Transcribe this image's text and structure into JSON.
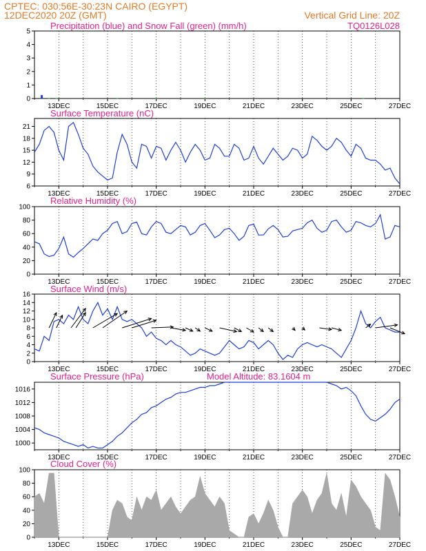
{
  "header": {
    "line1_left": "CPTEC:   030:56E-30:23N  CAIRO (EGYPT)",
    "line2_left": "12DEC2020 20Z (GMT)",
    "line2_right": "Vertical Grid Line: 20Z",
    "code": "TQ0126L028"
  },
  "colors": {
    "header": "#e07b28",
    "title": "#e0218a",
    "line": "#1f3fd6",
    "wind_arrow": "#000000",
    "cloud_fill": "#a9a9a9",
    "snow": "#2db34a"
  },
  "x_tick_labels": [
    "13DEC",
    "15DEC",
    "17DEC",
    "19DEC",
    "21DEC",
    "23DEC",
    "25DEC",
    "27DEC"
  ],
  "chart_data": [
    {
      "id": "precip",
      "type": "bar",
      "title": "Precipitation (blue) and Snow Fall (green) (mm/h)",
      "ylim": [
        0,
        5
      ],
      "yticks": [
        0,
        1,
        2,
        3,
        4,
        5
      ],
      "series": [
        {
          "name": "Precipitation",
          "color": "#1f3fd6",
          "x": [
            12.3
          ],
          "values": [
            0.25
          ]
        },
        {
          "name": "Snow Fall",
          "color": "#2db34a",
          "x": [
            12.6,
            12.9,
            15.4,
            17.0,
            19.0,
            25.5
          ],
          "values": [
            0.04,
            0.04,
            0.04,
            0.04,
            0.04,
            0.04
          ]
        }
      ]
    },
    {
      "id": "temp",
      "type": "line",
      "title": "Surface Temperature (nC)",
      "ylim": [
        6,
        23
      ],
      "yticks": [
        6,
        9,
        12,
        15,
        18,
        21
      ],
      "x": [
        12.0,
        12.2,
        12.4,
        12.6,
        12.8,
        13.0,
        13.2,
        13.4,
        13.6,
        13.8,
        14.0,
        14.2,
        14.4,
        14.6,
        14.8,
        15.0,
        15.2,
        15.4,
        15.6,
        15.8,
        16.0,
        16.2,
        16.4,
        16.6,
        16.8,
        17.0,
        17.2,
        17.4,
        17.6,
        17.8,
        18.0,
        18.2,
        18.4,
        18.6,
        18.8,
        19.0,
        19.2,
        19.4,
        19.6,
        19.8,
        20.0,
        20.2,
        20.4,
        20.6,
        20.8,
        21.0,
        21.2,
        21.4,
        21.6,
        21.8,
        22.0,
        22.2,
        22.4,
        22.6,
        22.8,
        23.0,
        23.2,
        23.4,
        23.6,
        23.8,
        24.0,
        24.2,
        24.4,
        24.6,
        24.8,
        25.0,
        25.2,
        25.4,
        25.6,
        25.8,
        26.0,
        26.2,
        26.4,
        26.6,
        26.8,
        27.0
      ],
      "values": [
        14.5,
        16.5,
        20.0,
        21.0,
        19.5,
        15.0,
        12.5,
        21.0,
        22.0,
        19.0,
        15.5,
        14.0,
        11.0,
        9.5,
        8.5,
        7.5,
        8.0,
        14.5,
        19.0,
        16.5,
        12.0,
        10.5,
        16.5,
        16.0,
        13.0,
        16.0,
        15.5,
        12.5,
        15.0,
        17.0,
        15.0,
        12.0,
        14.5,
        16.5,
        15.0,
        12.5,
        13.0,
        16.5,
        15.5,
        13.5,
        13.5,
        16.5,
        15.5,
        12.5,
        13.0,
        16.0,
        13.0,
        11.5,
        13.5,
        15.5,
        14.0,
        12.5,
        13.5,
        15.5,
        15.0,
        13.0,
        14.0,
        18.5,
        17.5,
        16.0,
        15.0,
        16.0,
        18.0,
        17.0,
        15.0,
        13.5,
        16.5,
        15.5,
        13.0,
        12.5,
        12.5,
        11.5,
        10.0,
        10.5,
        8.0,
        6.5
      ]
    },
    {
      "id": "humidity",
      "type": "line",
      "title": "Relative Humidity (%)",
      "ylim": [
        0,
        100
      ],
      "yticks": [
        0,
        20,
        40,
        60,
        80,
        100
      ],
      "x": [
        12.0,
        12.2,
        12.4,
        12.6,
        12.8,
        13.0,
        13.2,
        13.4,
        13.6,
        13.8,
        14.0,
        14.2,
        14.4,
        14.6,
        14.8,
        15.0,
        15.2,
        15.4,
        15.6,
        15.8,
        16.0,
        16.2,
        16.4,
        16.6,
        16.8,
        17.0,
        17.2,
        17.4,
        17.6,
        17.8,
        18.0,
        18.2,
        18.4,
        18.6,
        18.8,
        19.0,
        19.2,
        19.4,
        19.6,
        19.8,
        20.0,
        20.2,
        20.4,
        20.6,
        20.8,
        21.0,
        21.2,
        21.4,
        21.6,
        21.8,
        22.0,
        22.2,
        22.4,
        22.6,
        22.8,
        23.0,
        23.2,
        23.4,
        23.6,
        23.8,
        24.0,
        24.2,
        24.4,
        24.6,
        24.8,
        25.0,
        25.2,
        25.4,
        25.6,
        25.8,
        26.0,
        26.2,
        26.4,
        26.6,
        26.8,
        27.0
      ],
      "values": [
        48.0,
        45.0,
        30.0,
        26.0,
        28.0,
        38.0,
        55.0,
        30.0,
        25.0,
        32.0,
        38.0,
        45.0,
        52.0,
        50.0,
        60.0,
        65.0,
        75.0,
        78.0,
        60.0,
        63.0,
        75.0,
        77.0,
        60.0,
        58.0,
        70.0,
        78.0,
        75.0,
        62.0,
        60.0,
        66.0,
        72.0,
        70.0,
        58.0,
        62.0,
        72.0,
        75.0,
        65.0,
        54.0,
        58.0,
        66.0,
        68.0,
        60.0,
        50.0,
        56.0,
        72.0,
        74.0,
        58.0,
        58.0,
        67.0,
        72.0,
        66.0,
        55.0,
        56.0,
        64.0,
        66.0,
        68.0,
        76.0,
        80.0,
        68.0,
        62.0,
        65.0,
        78.0,
        80.0,
        70.0,
        62.0,
        65.0,
        78.0,
        76.0,
        72.0,
        70.0,
        75.0,
        88.0,
        52.0,
        55.0,
        72.0,
        70.0
      ]
    },
    {
      "id": "wind",
      "type": "line",
      "title": "Surface Wind (m/s)",
      "ylim": [
        0,
        16
      ],
      "yticks": [
        0,
        2,
        4,
        6,
        8,
        10,
        12,
        14,
        16
      ],
      "x": [
        12.0,
        12.2,
        12.4,
        12.6,
        12.8,
        13.0,
        13.2,
        13.4,
        13.6,
        13.8,
        14.0,
        14.2,
        14.4,
        14.6,
        14.8,
        15.0,
        15.2,
        15.4,
        15.6,
        15.8,
        16.0,
        16.2,
        16.4,
        16.6,
        16.8,
        17.0,
        17.2,
        17.4,
        17.6,
        17.8,
        18.0,
        18.2,
        18.4,
        18.6,
        18.8,
        19.0,
        19.2,
        19.4,
        19.6,
        19.8,
        20.0,
        20.2,
        20.4,
        20.6,
        20.8,
        21.0,
        21.2,
        21.4,
        21.6,
        21.8,
        22.0,
        22.2,
        22.4,
        22.6,
        22.8,
        23.0,
        23.2,
        23.4,
        23.6,
        23.8,
        24.0,
        24.2,
        24.4,
        24.6,
        24.8,
        25.0,
        25.2,
        25.4,
        25.6,
        25.8,
        26.0,
        26.2,
        26.4,
        26.6,
        26.8,
        27.0
      ],
      "values": [
        3.0,
        2.5,
        6.0,
        5.0,
        9.5,
        10.0,
        9.0,
        11.0,
        10.0,
        13.0,
        10.0,
        9.0,
        12.0,
        14.0,
        11.0,
        12.5,
        10.0,
        13.0,
        10.0,
        9.5,
        10.0,
        9.0,
        8.0,
        6.0,
        7.0,
        5.5,
        5.0,
        4.0,
        5.0,
        4.0,
        3.5,
        2.5,
        1.5,
        2.0,
        3.0,
        2.5,
        2.0,
        1.5,
        2.0,
        3.5,
        5.0,
        4.0,
        3.0,
        3.5,
        5.0,
        4.5,
        3.0,
        4.0,
        5.0,
        4.0,
        2.0,
        0.5,
        1.5,
        1.0,
        3.0,
        4.0,
        4.5,
        4.0,
        3.5,
        4.0,
        3.5,
        3.0,
        2.0,
        1.0,
        3.0,
        5.0,
        8.0,
        12.0,
        9.0,
        8.0,
        9.5,
        10.5,
        8.0,
        7.5,
        7.0,
        7.0
      ],
      "arrows": [
        {
          "x": 12.6,
          "dx": 0.3,
          "dy": 3.6
        },
        {
          "x": 12.9,
          "dx": 0.25,
          "dy": 3.0
        },
        {
          "x": 13.5,
          "dx": 0.6,
          "dy": 4.6
        },
        {
          "x": 13.7,
          "dx": 0.4,
          "dy": 3.6
        },
        {
          "x": 14.4,
          "dx": 1.0,
          "dy": 3.4
        },
        {
          "x": 14.8,
          "dx": 1.0,
          "dy": 4.0
        },
        {
          "x": 15.6,
          "dx": 1.2,
          "dy": 2.2
        },
        {
          "x": 16.0,
          "dx": 1.0,
          "dy": 1.8
        },
        {
          "x": 16.8,
          "dx": 0.9,
          "dy": 0.2
        },
        {
          "x": 17.6,
          "dx": 0.6,
          "dy": -0.6
        },
        {
          "x": 18.2,
          "dx": 0.3,
          "dy": -0.8
        },
        {
          "x": 18.6,
          "dx": 0.2,
          "dy": -0.8
        },
        {
          "x": 19.0,
          "dx": 0.3,
          "dy": -0.8
        },
        {
          "x": 19.6,
          "dx": 0.7,
          "dy": -0.9
        },
        {
          "x": 20.2,
          "dx": 0.3,
          "dy": -0.9
        },
        {
          "x": 20.7,
          "dx": 0.3,
          "dy": -1.0
        },
        {
          "x": 21.2,
          "dx": 0.2,
          "dy": -0.9
        },
        {
          "x": 21.6,
          "dx": 0.2,
          "dy": -0.9
        },
        {
          "x": 22.6,
          "dx": 0.1,
          "dy": -0.6
        },
        {
          "x": 23.0,
          "dx": 0.1,
          "dy": -0.5
        },
        {
          "x": 23.7,
          "dx": 0.5,
          "dy": -0.4
        },
        {
          "x": 24.2,
          "dx": 0.4,
          "dy": -0.6
        },
        {
          "x": 25.6,
          "dx": 0.2,
          "dy": 0.9
        },
        {
          "x": 26.0,
          "dx": 0.9,
          "dy": 0.7
        },
        {
          "x": 26.6,
          "dx": 0.6,
          "dy": -1.4
        }
      ]
    },
    {
      "id": "pressure",
      "type": "line",
      "title": "Surface Pressure (hPa)",
      "annotation": "Model Altitude: 83.1604 m",
      "ylim": [
        998,
        1018
      ],
      "yticks": [
        1000,
        1004,
        1008,
        1012,
        1016
      ],
      "x": [
        12.0,
        12.2,
        12.4,
        12.6,
        12.8,
        13.0,
        13.2,
        13.4,
        13.6,
        13.8,
        14.0,
        14.2,
        14.4,
        14.6,
        14.8,
        15.0,
        15.2,
        15.4,
        15.6,
        15.8,
        16.0,
        16.2,
        16.4,
        16.6,
        16.8,
        17.0,
        17.2,
        17.4,
        17.6,
        17.8,
        18.0,
        18.2,
        18.4,
        18.6,
        18.8,
        19.0,
        19.2,
        19.4,
        19.6,
        19.8,
        20.0,
        20.2,
        20.4,
        20.6,
        20.8,
        21.0,
        21.2,
        21.4,
        21.6,
        21.8,
        22.0,
        22.2,
        22.4,
        22.6,
        22.8,
        23.0,
        23.2,
        23.4,
        23.6,
        23.8,
        24.0,
        24.2,
        24.4,
        24.6,
        24.8,
        25.0,
        25.2,
        25.4,
        25.6,
        25.8,
        26.0,
        26.2,
        26.4,
        26.6,
        26.8,
        27.0
      ],
      "values": [
        1004.5,
        1004.0,
        1003.0,
        1002.5,
        1002.0,
        1001.5,
        1000.5,
        1000.0,
        999.5,
        999.0,
        999.5,
        998.5,
        999.0,
        998.5,
        998.5,
        999.5,
        1000.5,
        1002.0,
        1003.0,
        1004.5,
        1006.0,
        1007.0,
        1008.5,
        1009.0,
        1010.5,
        1011.0,
        1012.0,
        1013.0,
        1013.5,
        1014.5,
        1015.0,
        1015.0,
        1015.5,
        1016.0,
        1016.5,
        1016.5,
        1017.0,
        1017.0,
        1017.5,
        1018.0,
        1018.0,
        1018.0,
        1018.0,
        1018.0,
        1018.0,
        1018.0,
        1018.0,
        1018.0,
        1018.0,
        1018.0,
        1018.0,
        1018.0,
        1018.0,
        1018.0,
        1018.0,
        1018.0,
        1018.0,
        1018.0,
        1018.0,
        1018.0,
        1018.0,
        1017.5,
        1017.0,
        1016.0,
        1016.5,
        1015.5,
        1014.0,
        1011.0,
        1008.5,
        1007.0,
        1006.5,
        1007.5,
        1008.5,
        1010.0,
        1012.0,
        1013.0
      ]
    },
    {
      "id": "cloud",
      "type": "area",
      "title": "Cloud Cover (%)",
      "ylim": [
        0,
        100
      ],
      "yticks": [
        0,
        20,
        40,
        60,
        80,
        100
      ],
      "x": [
        12.0,
        12.2,
        12.4,
        12.6,
        12.8,
        13.0,
        13.2,
        13.4,
        13.6,
        13.8,
        14.0,
        14.2,
        14.4,
        14.6,
        14.8,
        15.0,
        15.2,
        15.4,
        15.6,
        15.8,
        16.0,
        16.2,
        16.4,
        16.6,
        16.8,
        17.0,
        17.2,
        17.4,
        17.6,
        17.8,
        18.0,
        18.2,
        18.4,
        18.6,
        18.8,
        19.0,
        19.2,
        19.4,
        19.6,
        19.8,
        20.0,
        20.2,
        20.4,
        20.6,
        20.8,
        21.0,
        21.2,
        21.4,
        21.6,
        21.8,
        22.0,
        22.2,
        22.4,
        22.6,
        22.8,
        23.0,
        23.2,
        23.4,
        23.6,
        23.8,
        24.0,
        24.2,
        24.4,
        24.6,
        24.8,
        25.0,
        25.2,
        25.4,
        25.6,
        25.8,
        26.0,
        26.2,
        26.4,
        26.6,
        26.8,
        27.0
      ],
      "values": [
        60,
        65,
        50,
        95,
        95,
        0,
        0,
        0,
        0,
        0,
        0,
        0,
        0,
        0,
        0,
        0,
        40,
        55,
        50,
        30,
        25,
        60,
        40,
        60,
        55,
        70,
        40,
        50,
        60,
        45,
        35,
        45,
        55,
        60,
        90,
        65,
        55,
        45,
        60,
        50,
        10,
        5,
        0,
        0,
        30,
        35,
        20,
        35,
        55,
        40,
        15,
        0,
        0,
        50,
        60,
        70,
        60,
        35,
        55,
        65,
        95,
        50,
        40,
        65,
        30,
        85,
        75,
        60,
        50,
        40,
        15,
        10,
        95,
        85,
        60,
        30
      ]
    }
  ]
}
